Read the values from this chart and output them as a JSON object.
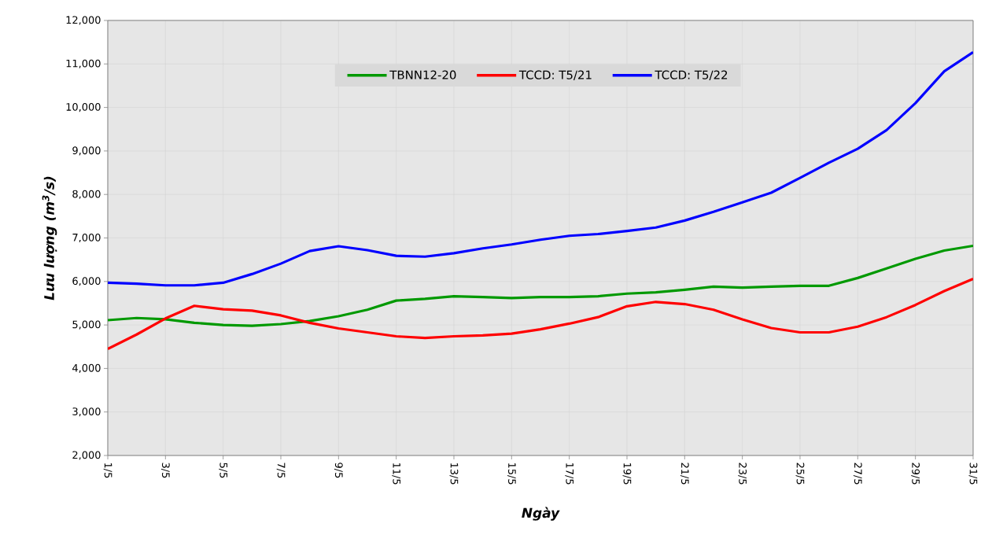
{
  "chart_data": {
    "type": "line",
    "xlabel": "Ngày",
    "ylabel": "Lưu lượng (m$^{3}$/s)",
    "categories": [
      "1/5",
      null,
      "3/5",
      null,
      "5/5",
      null,
      "7/5",
      null,
      "9/5",
      null,
      "11/5",
      null,
      "13/5",
      null,
      "15/5",
      null,
      "17/5",
      null,
      "19/5",
      null,
      "21/5",
      null,
      "23/5",
      null,
      "25/5",
      null,
      "27/5",
      null,
      "29/5",
      null,
      "31/5"
    ],
    "ylim": [
      2000,
      12000
    ],
    "yticks": [
      {
        "value": 2000,
        "label": "2,000"
      },
      {
        "value": 3000,
        "label": "3,000"
      },
      {
        "value": 4000,
        "label": "4,000"
      },
      {
        "value": 5000,
        "label": "5,000"
      },
      {
        "value": 6000,
        "label": "6,000"
      },
      {
        "value": 7000,
        "label": "7,000"
      },
      {
        "value": 8000,
        "label": "8,000"
      },
      {
        "value": 9000,
        "label": "9,000"
      },
      {
        "value": 10000,
        "label": "10,000"
      },
      {
        "value": 11000,
        "label": "11,000"
      },
      {
        "value": 12000,
        "label": "12,000"
      }
    ],
    "grid": true,
    "legend": "top",
    "marker": "none",
    "line_style": "solid",
    "series": [
      {
        "name": "TBNN12-20",
        "color": "#009900",
        "values": [
          5110,
          5160,
          5130,
          5050,
          5000,
          4980,
          5020,
          5090,
          5200,
          5350,
          5560,
          5600,
          5660,
          5640,
          5620,
          5640,
          5640,
          5660,
          5720,
          5750,
          5810,
          5880,
          5860,
          5880,
          5900,
          5900,
          6080,
          6300,
          6520,
          6710,
          6820
        ]
      },
      {
        "name": "TCCD: T5/21",
        "color": "#ff0000",
        "values": [
          4450,
          4780,
          5150,
          5440,
          5360,
          5330,
          5220,
          5050,
          4920,
          4830,
          4740,
          4700,
          4740,
          4760,
          4800,
          4900,
          5030,
          5180,
          5430,
          5530,
          5480,
          5350,
          5130,
          4930,
          4830,
          4830,
          4960,
          5180,
          5460,
          5780,
          6060
        ]
      },
      {
        "name": "TCCD: T5/22",
        "color": "#0000ff",
        "values": [
          5970,
          5950,
          5910,
          5910,
          5970,
          6170,
          6410,
          6700,
          6810,
          6720,
          6590,
          6570,
          6650,
          6760,
          6850,
          6960,
          7050,
          7090,
          7160,
          7240,
          7400,
          7600,
          7820,
          8040,
          8380,
          8730,
          9050,
          9480,
          10100,
          10830,
          11270
        ]
      }
    ]
  }
}
